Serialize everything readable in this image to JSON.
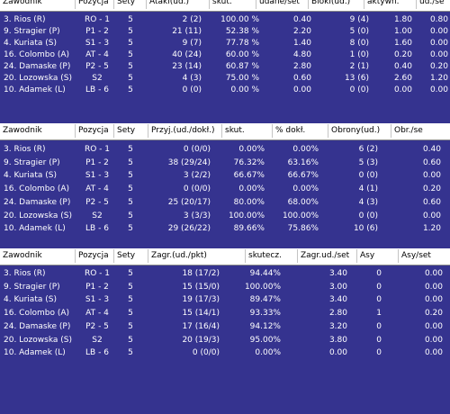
{
  "tables": [
    {
      "id": "attack",
      "headers": [
        "Zawodnik",
        "Pozycja",
        "Sety",
        "Ataki(ud.)",
        "skut.",
        "udane/set",
        "Bloki(ud.)",
        "aktywn.",
        "ud./se"
      ],
      "rows": [
        [
          "3. Rios (R)",
          "RO - 1",
          "5",
          "2 (2)",
          "100.00 %",
          "0.40",
          "9 (4)",
          "1.80",
          "0.80"
        ],
        [
          "9. Stragier (P)",
          "P1 - 2",
          "5",
          "21 (11)",
          "52.38 %",
          "2.20",
          "5 (0)",
          "1.00",
          "0.00"
        ],
        [
          "4. Kuriata (S)",
          "S1 - 3",
          "5",
          "9 (7)",
          "77.78 %",
          "1.40",
          "8 (0)",
          "1.60",
          "0.00"
        ],
        [
          "16. Colombo (A)",
          "AT - 4",
          "5",
          "40 (24)",
          "60.00 %",
          "4.80",
          "1 (0)",
          "0.20",
          "0.00"
        ],
        [
          "24. Damaske (P)",
          "P2 - 5",
          "5",
          "23 (14)",
          "60.87 %",
          "2.80",
          "2 (1)",
          "0.40",
          "0.20"
        ],
        [
          "20. Lozowska (S)",
          "S2",
          "5",
          "4 (3)",
          "75.00 %",
          "0.60",
          "13 (6)",
          "2.60",
          "1.20"
        ],
        [
          "10. Adamek (L)",
          "LB - 6",
          "5",
          "0 (0)",
          "0.00 %",
          "0.00",
          "0 (0)",
          "0.00",
          "0.00"
        ]
      ]
    },
    {
      "id": "reception",
      "headers": [
        "Zawodnik",
        "Pozycja",
        "Sety",
        "Przyj.(ud./dokł.)",
        "skut.",
        "% dokł.",
        "Obrony(ud.)",
        "Obr./se"
      ],
      "rows": [
        [
          "3. Rios (R)",
          "RO - 1",
          "5",
          "0 (0/0)",
          "0.00%",
          "0.00%",
          "6 (2)",
          "0.40"
        ],
        [
          "9. Stragier (P)",
          "P1 - 2",
          "5",
          "38 (29/24)",
          "76.32%",
          "63.16%",
          "5 (3)",
          "0.60"
        ],
        [
          "4. Kuriata (S)",
          "S1 - 3",
          "5",
          "3 (2/2)",
          "66.67%",
          "66.67%",
          "0 (0)",
          "0.00"
        ],
        [
          "16. Colombo (A)",
          "AT - 4",
          "5",
          "0 (0/0)",
          "0.00%",
          "0.00%",
          "4 (1)",
          "0.20"
        ],
        [
          "24. Damaske (P)",
          "P2 - 5",
          "5",
          "25 (20/17)",
          "80.00%",
          "68.00%",
          "4 (3)",
          "0.60"
        ],
        [
          "20. Lozowska (S)",
          "S2",
          "5",
          "3 (3/3)",
          "100.00%",
          "100.00%",
          "0 (0)",
          "0.00"
        ],
        [
          "10. Adamek (L)",
          "LB - 6",
          "5",
          "29 (26/22)",
          "89.66%",
          "75.86%",
          "10 (6)",
          "1.20"
        ]
      ]
    },
    {
      "id": "serve",
      "headers": [
        "Zawodnik",
        "Pozycja",
        "Sety",
        "Zagr.(ud./pkt)",
        "skutecz.",
        "Zagr.ud./set",
        "Asy",
        "Asy/set"
      ],
      "rows": [
        [
          "3. Rios (R)",
          "RO - 1",
          "5",
          "18 (17/2)",
          "94.44%",
          "3.40",
          "0",
          "0.00"
        ],
        [
          "9. Stragier (P)",
          "P1 - 2",
          "5",
          "15 (15/0)",
          "100.00%",
          "3.00",
          "0",
          "0.00"
        ],
        [
          "4. Kuriata (S)",
          "S1 - 3",
          "5",
          "19 (17/3)",
          "89.47%",
          "3.40",
          "0",
          "0.00"
        ],
        [
          "16. Colombo (A)",
          "AT - 4",
          "5",
          "15 (14/1)",
          "93.33%",
          "2.80",
          "1",
          "0.20"
        ],
        [
          "24. Damaske (P)",
          "P2 - 5",
          "5",
          "17 (16/4)",
          "94.12%",
          "3.20",
          "0",
          "0.00"
        ],
        [
          "20. Lozowska (S)",
          "S2",
          "5",
          "20 (19/3)",
          "95.00%",
          "3.80",
          "0",
          "0.00"
        ],
        [
          "10. Adamek (L)",
          "LB - 6",
          "5",
          "0 (0/0)",
          "0.00%",
          "0.00",
          "0",
          "0.00"
        ]
      ]
    }
  ]
}
